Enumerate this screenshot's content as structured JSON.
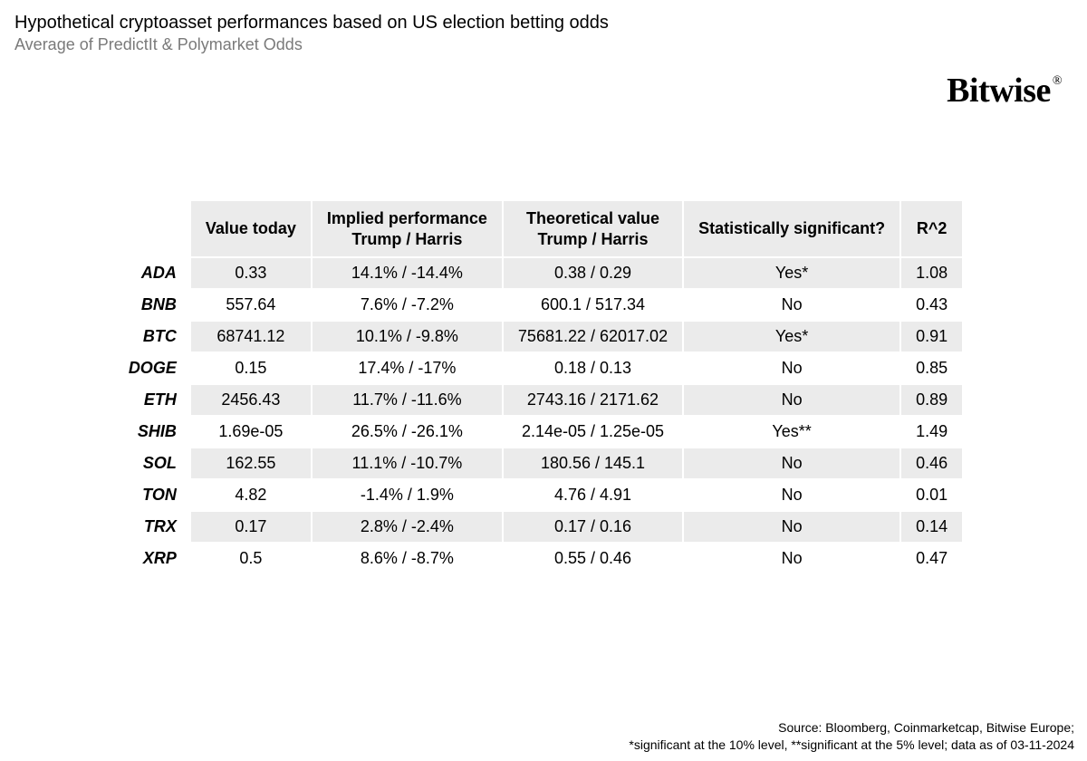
{
  "header": {
    "title": "Hypothetical cryptoasset performances based on US election betting odds",
    "subtitle": "Average of PredictIt & Polymarket Odds",
    "brand": "Bitwise"
  },
  "table": {
    "type": "table",
    "background_color": "#ffffff",
    "row_stripe_color": "#ebebeb",
    "header_bg": "#ebebeb",
    "font_size_pt": 13,
    "columns": [
      {
        "key": "value_today",
        "label": "Value today"
      },
      {
        "key": "implied",
        "label_line1": "Implied performance",
        "label_line2": "Trump / Harris"
      },
      {
        "key": "theoretical",
        "label_line1": "Theoretical value",
        "label_line2": "Trump / Harris"
      },
      {
        "key": "significant",
        "label": "Statistically significant?"
      },
      {
        "key": "r2",
        "label": "R^2"
      }
    ],
    "rows": [
      {
        "asset": "ADA",
        "value_today": "0.33",
        "implied": "14.1% / -14.4%",
        "theoretical": "0.38 / 0.29",
        "significant": "Yes*",
        "r2": "1.08"
      },
      {
        "asset": "BNB",
        "value_today": "557.64",
        "implied": "7.6% / -7.2%",
        "theoretical": "600.1 / 517.34",
        "significant": "No",
        "r2": "0.43"
      },
      {
        "asset": "BTC",
        "value_today": "68741.12",
        "implied": "10.1% / -9.8%",
        "theoretical": "75681.22 / 62017.02",
        "significant": "Yes*",
        "r2": "0.91"
      },
      {
        "asset": "DOGE",
        "value_today": "0.15",
        "implied": "17.4% / -17%",
        "theoretical": "0.18 / 0.13",
        "significant": "No",
        "r2": "0.85"
      },
      {
        "asset": "ETH",
        "value_today": "2456.43",
        "implied": "11.7% / -11.6%",
        "theoretical": "2743.16 / 2171.62",
        "significant": "No",
        "r2": "0.89"
      },
      {
        "asset": "SHIB",
        "value_today": "1.69e-05",
        "implied": "26.5% / -26.1%",
        "theoretical": "2.14e-05 / 1.25e-05",
        "significant": "Yes**",
        "r2": "1.49"
      },
      {
        "asset": "SOL",
        "value_today": "162.55",
        "implied": "11.1% / -10.7%",
        "theoretical": "180.56 / 145.1",
        "significant": "No",
        "r2": "0.46"
      },
      {
        "asset": "TON",
        "value_today": "4.82",
        "implied": "-1.4% / 1.9%",
        "theoretical": "4.76 / 4.91",
        "significant": "No",
        "r2": "0.01"
      },
      {
        "asset": "TRX",
        "value_today": "0.17",
        "implied": "2.8% / -2.4%",
        "theoretical": "0.17 / 0.16",
        "significant": "No",
        "r2": "0.14"
      },
      {
        "asset": "XRP",
        "value_today": "0.5",
        "implied": "8.6% / -8.7%",
        "theoretical": "0.55 / 0.46",
        "significant": "No",
        "r2": "0.47"
      }
    ]
  },
  "footer": {
    "line1": "Source: Bloomberg, Coinmarketcap, Bitwise Europe;",
    "line2": "*significant at the 10% level, **significant at the 5% level; data as of  03-11-2024"
  }
}
